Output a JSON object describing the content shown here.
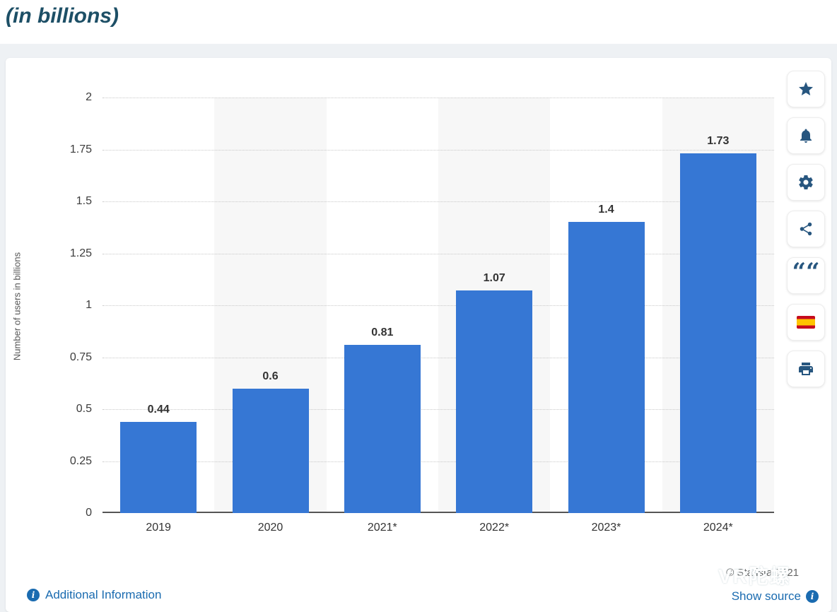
{
  "page": {
    "title_fragment": "(in billions)"
  },
  "chart_data": {
    "type": "bar",
    "categories": [
      "2019",
      "2020",
      "2021*",
      "2022*",
      "2023*",
      "2024*"
    ],
    "values": [
      0.44,
      0.6,
      0.81,
      1.07,
      1.4,
      1.73
    ],
    "value_labels": [
      "0.44",
      "0.6",
      "0.81",
      "1.07",
      "1.4",
      "1.73"
    ],
    "title": "",
    "xlabel": "",
    "ylabel": "Number of users in billions",
    "ylim": [
      0,
      2
    ],
    "yticks": [
      "0",
      "0.25",
      "0.5",
      "0.75",
      "1",
      "1.25",
      "1.5",
      "1.75",
      "2"
    ],
    "bar_color": "#3677d4",
    "band_color": "#f7f7f7",
    "grid": "horizontal-dotted",
    "legend": "none"
  },
  "toolbar": {
    "buttons": [
      {
        "name": "favorite",
        "icon": "star-icon"
      },
      {
        "name": "alerts",
        "icon": "bell-icon"
      },
      {
        "name": "settings",
        "icon": "gear-icon"
      },
      {
        "name": "share",
        "icon": "share-icon"
      },
      {
        "name": "cite",
        "icon": "quote-icon"
      },
      {
        "name": "language-spanish",
        "icon": "spain-flag-icon"
      },
      {
        "name": "print",
        "icon": "printer-icon"
      }
    ],
    "quote_glyph": "““"
  },
  "footer": {
    "additional_information": "Additional Information",
    "copyright": "© Statista 2021",
    "show_source": "Show source",
    "info_glyph": "i"
  },
  "watermark": {
    "text": "VR陀螺"
  },
  "colors": {
    "bar": "#3677d4",
    "link": "#1a6bb0",
    "icon": "#27567f",
    "title": "#1d4f66",
    "axis_text": "#3c3c3c",
    "baseline": "#555555"
  }
}
